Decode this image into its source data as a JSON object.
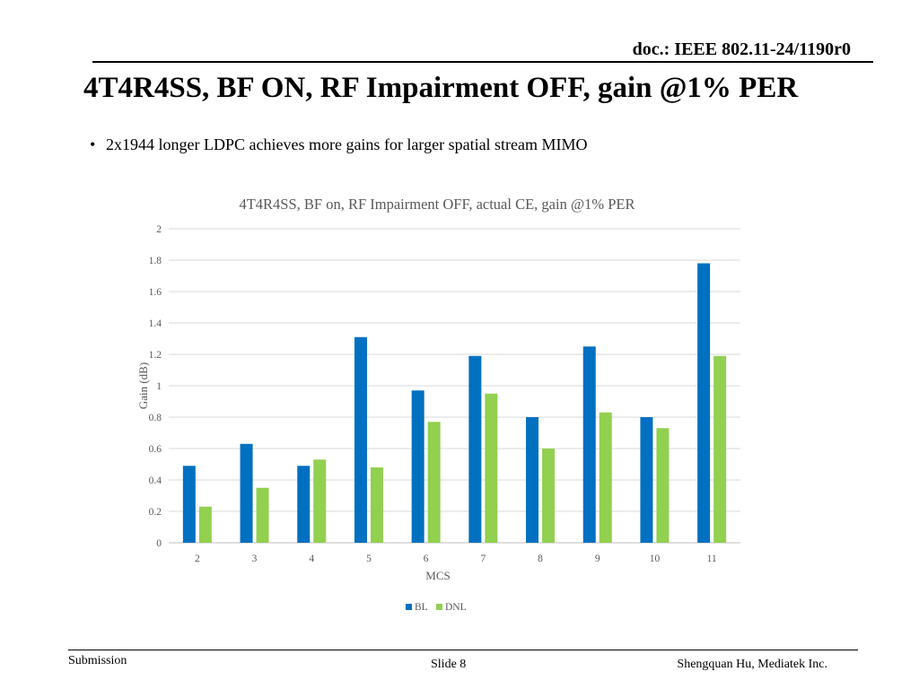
{
  "slide": {
    "doc_id": "doc.: IEEE 802.11-24/1190r0",
    "title": "4T4R4SS, BF ON, RF Impairment OFF, gain @1% PER",
    "bullet_symbol": "•",
    "bullet": "2x1944 longer LDPC achieves more gains for larger spatial stream MIMO",
    "footer_left": "Submission",
    "footer_center": "Slide 8",
    "footer_right": "Shengquan Hu, Mediatek Inc."
  },
  "chart_data": {
    "type": "bar",
    "title": "4T4R4SS, BF on, RF Impairment OFF, actual CE, gain @1% PER",
    "xlabel": "MCS",
    "ylabel": "Gain (dB)",
    "ylim": [
      0,
      2
    ],
    "yticks": [
      "0",
      "0.2",
      "0.4",
      "0.6",
      "0.8",
      "1",
      "1.2",
      "1.4",
      "1.6",
      "1.8",
      "2"
    ],
    "grid": true,
    "legend_position": "bottom",
    "categories": [
      "2",
      "3",
      "4",
      "5",
      "6",
      "7",
      "8",
      "9",
      "10",
      "11"
    ],
    "series": [
      {
        "name": "BL",
        "color": "#0070C0",
        "values": [
          0.49,
          0.63,
          0.49,
          1.31,
          0.97,
          1.19,
          0.8,
          1.25,
          0.8,
          1.78
        ]
      },
      {
        "name": "DNL",
        "color": "#92D050",
        "values": [
          0.23,
          0.35,
          0.53,
          0.48,
          0.77,
          0.95,
          0.6,
          0.83,
          0.73,
          1.19
        ]
      }
    ]
  }
}
